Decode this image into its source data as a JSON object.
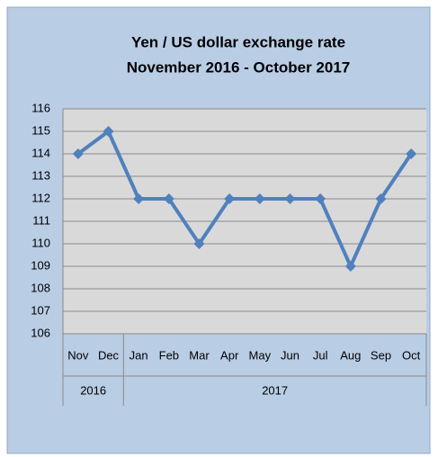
{
  "chart_data": {
    "type": "line",
    "title": [
      "Yen / US dollar exchange rate",
      "November 2016 - October 2017"
    ],
    "categories": [
      "Nov",
      "Dec",
      "Jan",
      "Feb",
      "Mar",
      "Apr",
      "May",
      "Jun",
      "Jul",
      "Aug",
      "Sep",
      "Oct"
    ],
    "category_years": [
      "2016",
      "2016",
      "2017",
      "2017",
      "2017",
      "2017",
      "2017",
      "2017",
      "2017",
      "2017",
      "2017",
      "2017"
    ],
    "series": [
      {
        "name": "Yen / US dollar",
        "color": "#4f81bd",
        "values": [
          114,
          115,
          112,
          112,
          110,
          112,
          112,
          112,
          112,
          109,
          112,
          114
        ]
      }
    ],
    "ylim": [
      106,
      116
    ],
    "yticks": [
      106,
      107,
      108,
      109,
      110,
      111,
      112,
      113,
      114,
      115,
      116
    ],
    "grid": true
  }
}
